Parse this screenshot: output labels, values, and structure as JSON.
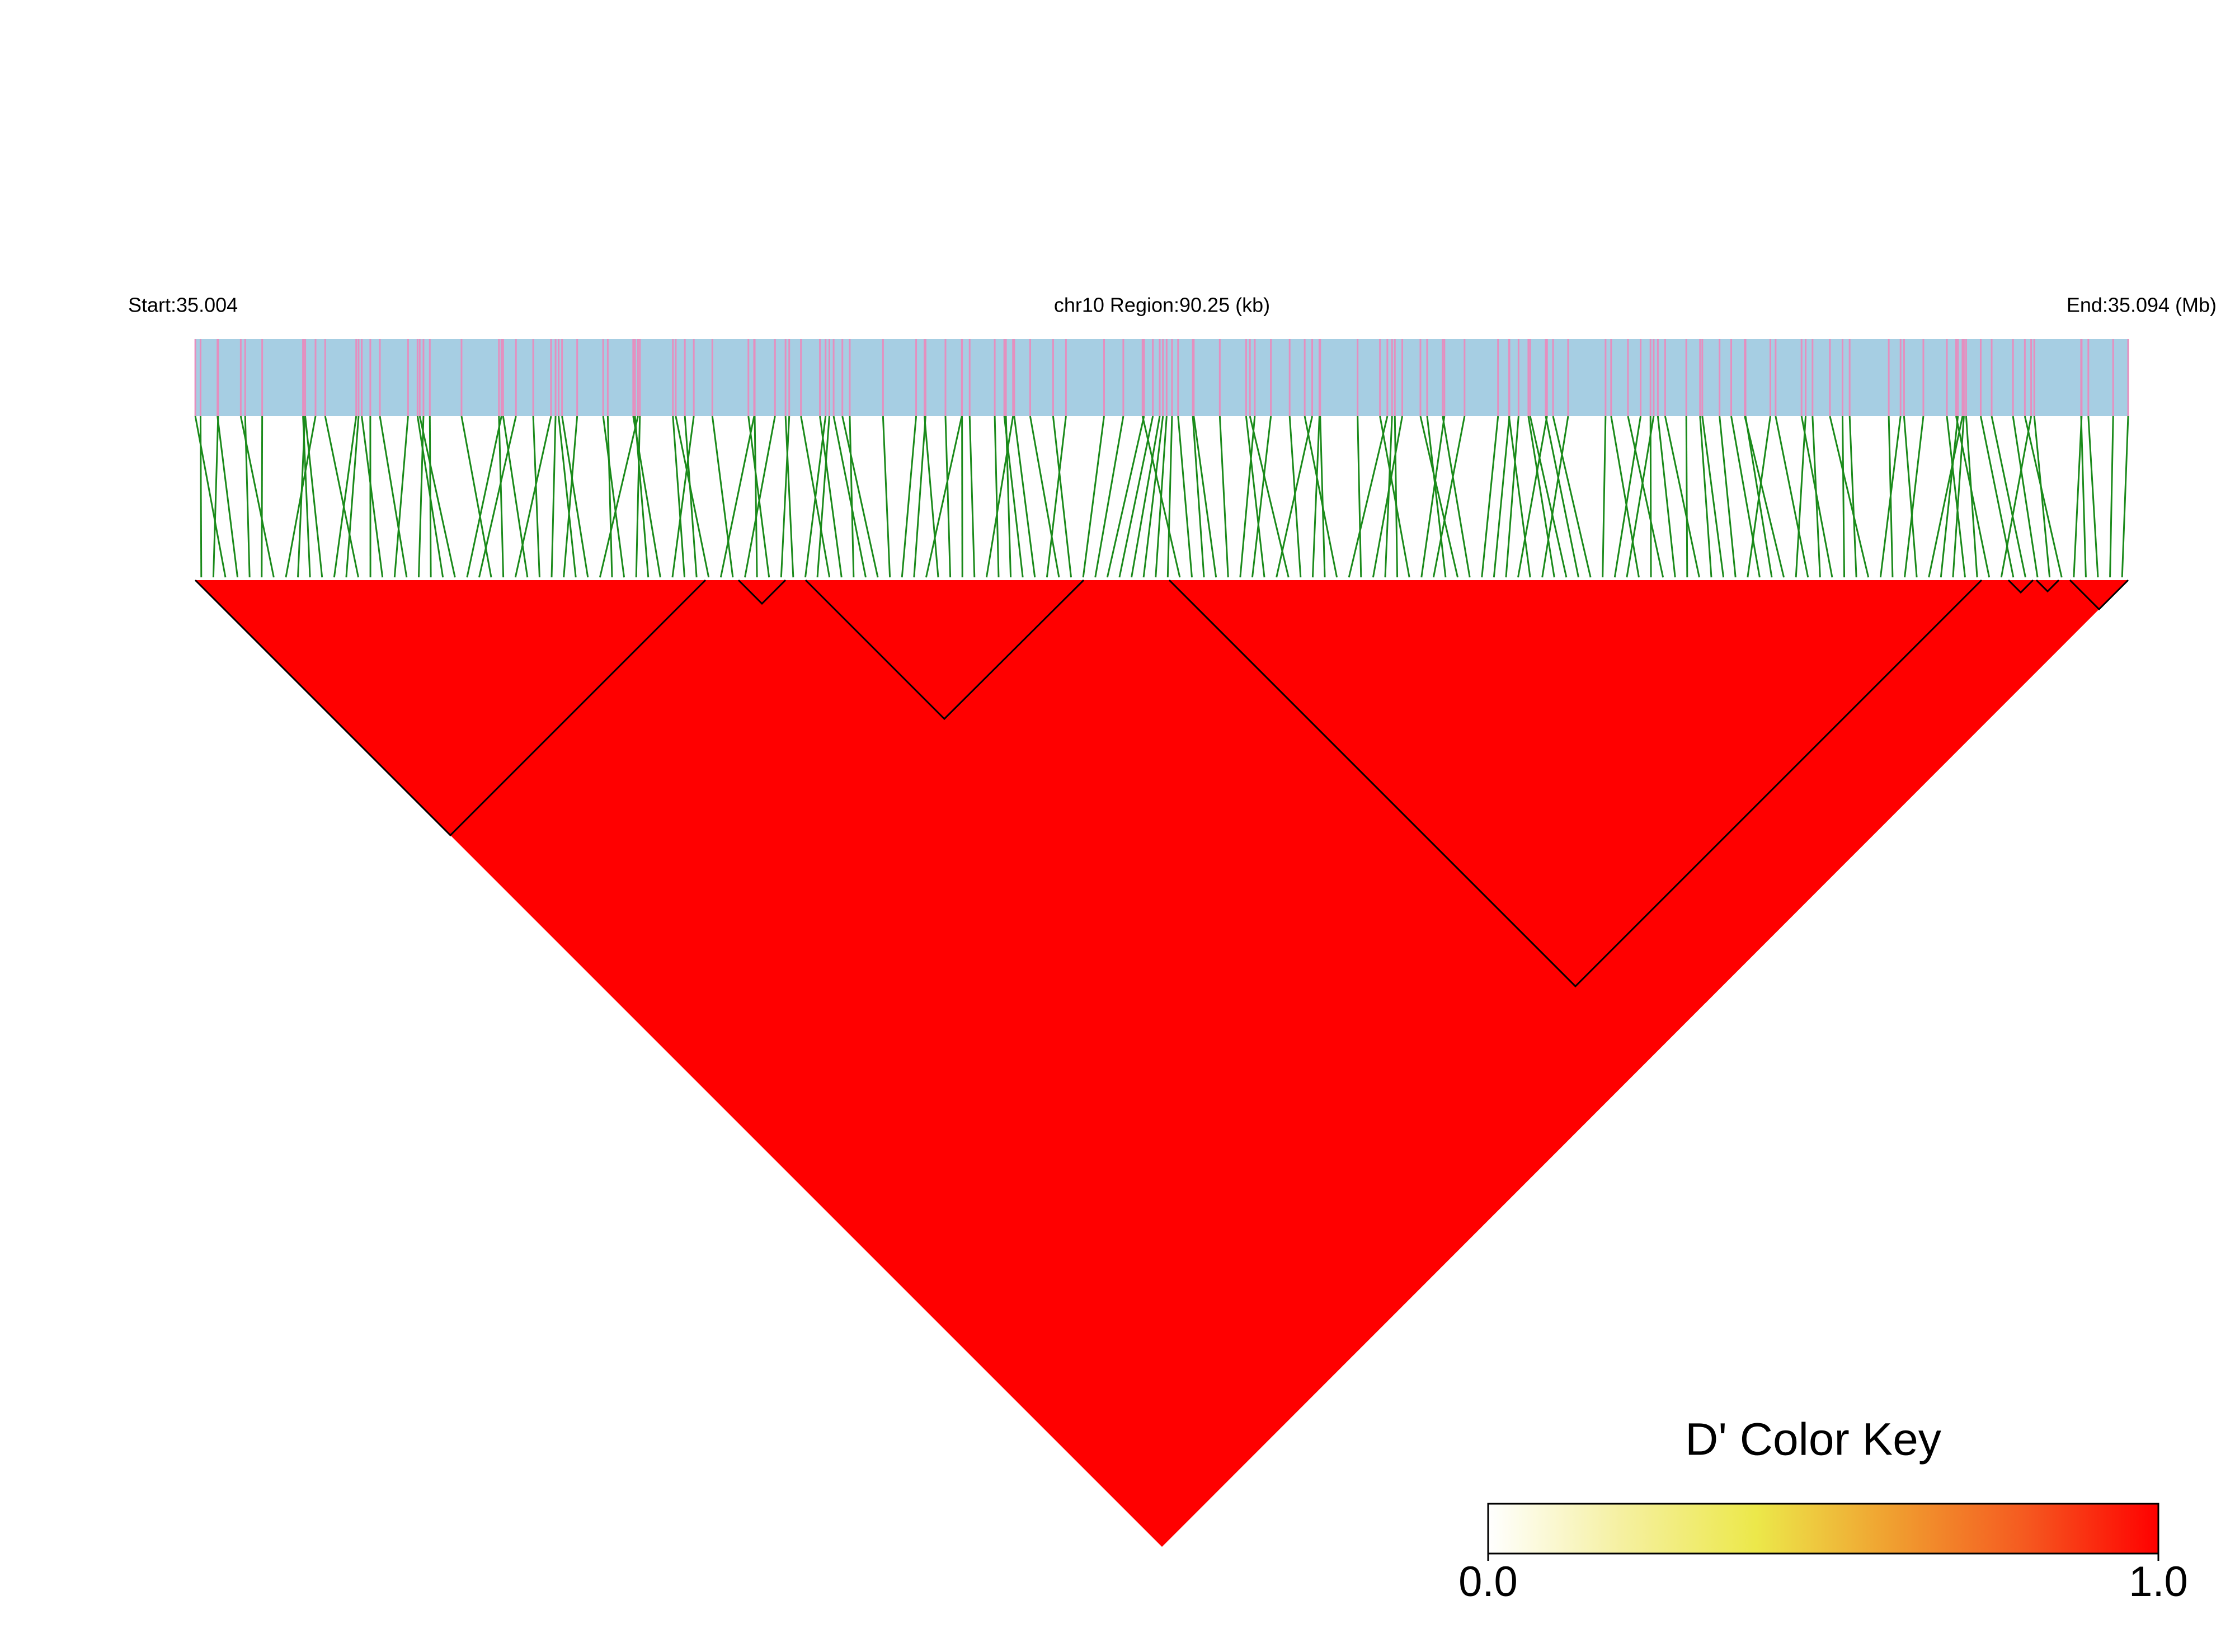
{
  "chart_data": {
    "type": "ld-heatmap",
    "start_label": "Start:35.004",
    "region_label": "chr10 Region:90.25 (kb)",
    "end_label": "End:35.094 (Mb)",
    "color_key": {
      "title": "D' Color Key",
      "colors": [
        "#ffffff",
        "#f5f0a0",
        "#ece84a",
        "#f0a030",
        "#f55a20",
        "#ff0000"
      ],
      "ticks": [
        {
          "value": 0,
          "label": "0.0"
        },
        {
          "value": 1,
          "label": "1.0"
        }
      ]
    }
  }
}
